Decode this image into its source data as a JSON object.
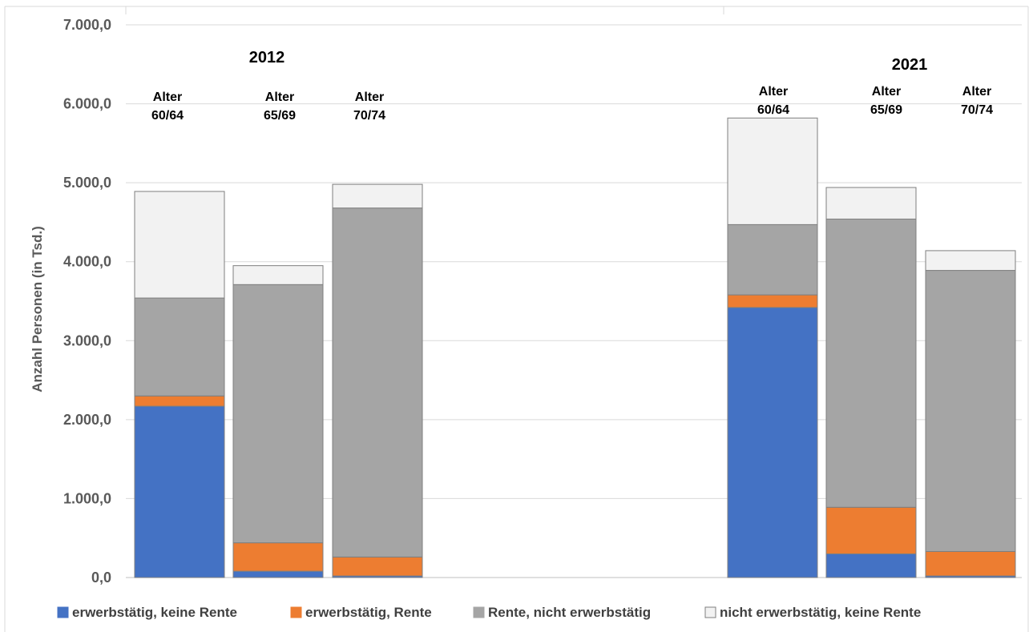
{
  "chart_data": {
    "type": "bar",
    "stacked": true,
    "ylabel": "Anzahl Personen (in Tsd.)",
    "ylim": [
      0,
      7000
    ],
    "yticks": [
      "0,0",
      "1.000,0",
      "2.000,0",
      "3.000,0",
      "4.000,0",
      "5.000,0",
      "6.000,0",
      "7.000,0"
    ],
    "grid": true,
    "legend_position": "bottom",
    "groups": [
      {
        "label": "2012",
        "bars": [
          {
            "label": [
              "Alter",
              "60/64"
            ],
            "values": [
              2170,
              130,
              1240,
              1350
            ]
          },
          {
            "label": [
              "Alter",
              "65/69"
            ],
            "values": [
              80,
              360,
              3270,
              240
            ]
          },
          {
            "label": [
              "Alter",
              "70/74"
            ],
            "values": [
              20,
              240,
              4420,
              300
            ]
          }
        ]
      },
      {
        "label": "2021",
        "bars": [
          {
            "label": [
              "Alter",
              "60/64"
            ],
            "values": [
              3420,
              160,
              890,
              1350
            ]
          },
          {
            "label": [
              "Alter",
              "65/69"
            ],
            "values": [
              300,
              590,
              3650,
              400
            ]
          },
          {
            "label": [
              "Alter",
              "70/74"
            ],
            "values": [
              20,
              310,
              3560,
              250
            ]
          }
        ]
      }
    ],
    "series": [
      {
        "name": "erwerbstätig, keine Rente",
        "color": "#4472c4"
      },
      {
        "name": "erwerbstätig, Rente",
        "color": "#ed7d31"
      },
      {
        "name": "Rente, nicht erwerbstätig",
        "color": "#a5a5a5"
      },
      {
        "name": "nicht erwerbstätig, keine Rente",
        "color": "#f2f2f2"
      }
    ]
  }
}
